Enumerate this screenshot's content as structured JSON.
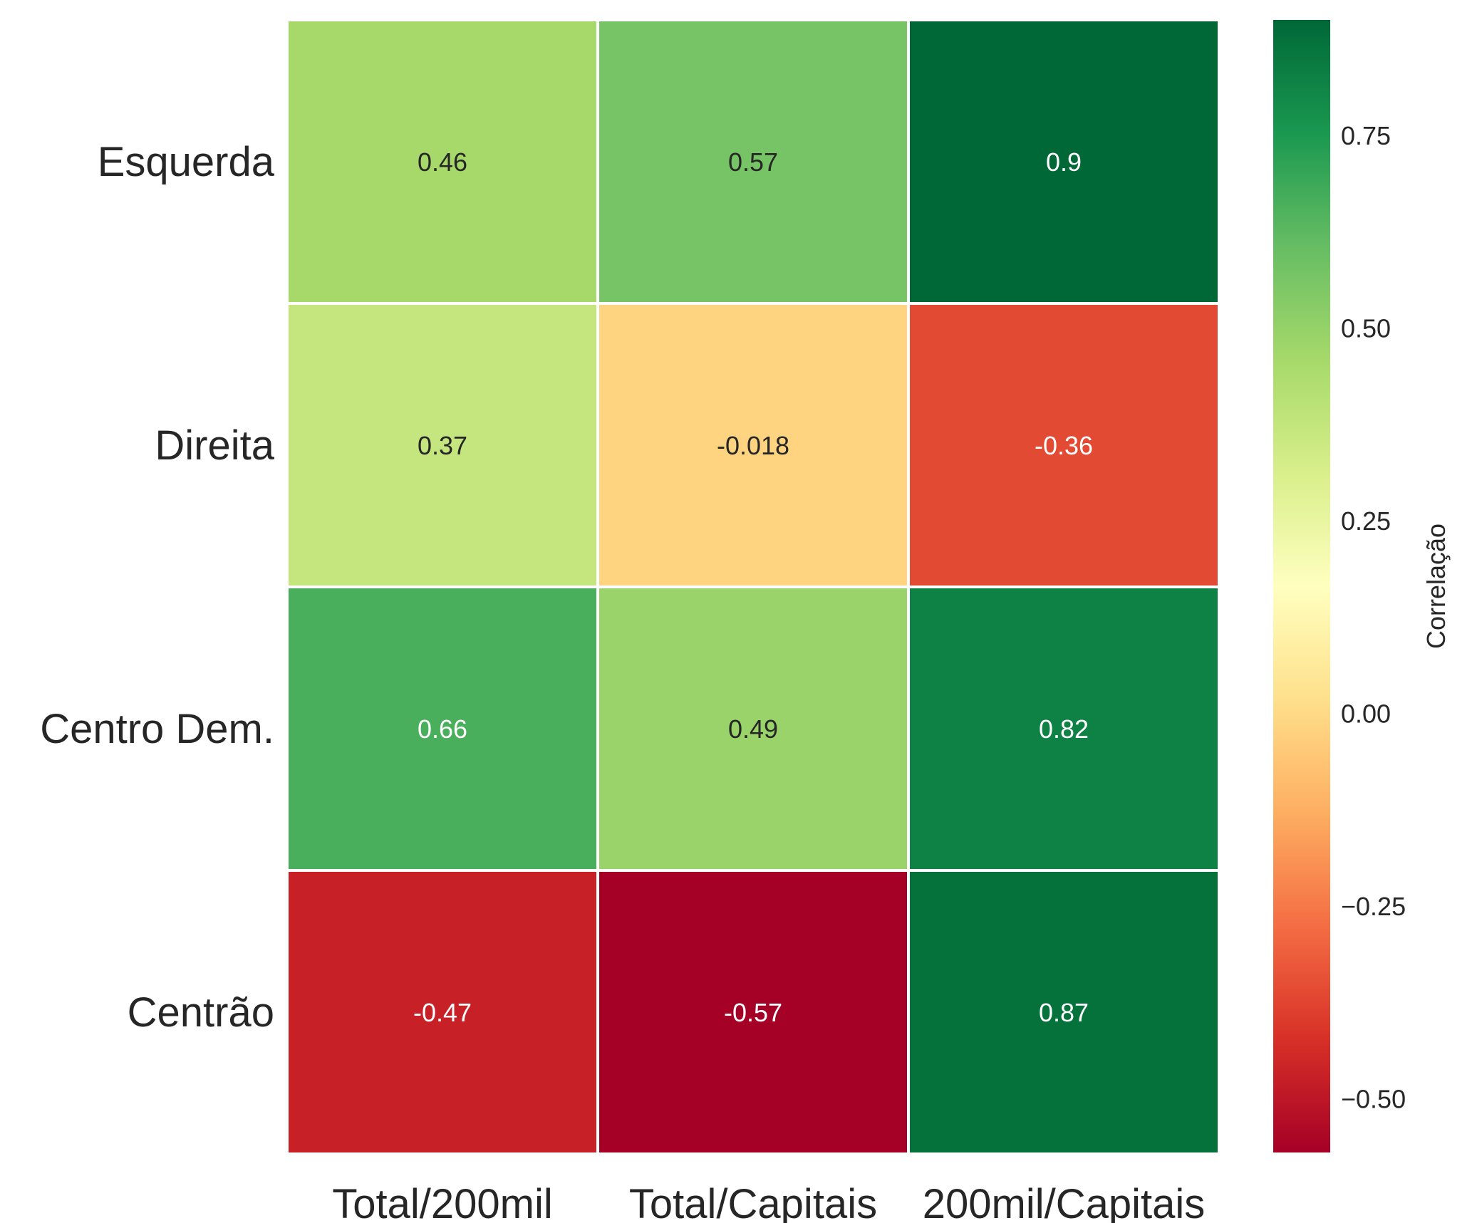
{
  "chart_data": {
    "type": "heatmap",
    "title": "",
    "xlabel": "",
    "ylabel": "",
    "columns": [
      "Total/200mil",
      "Total/Capitais",
      "200mil/Capitais"
    ],
    "rows": [
      "Esquerda",
      "Direita",
      "Centro Dem.",
      "Centrão"
    ],
    "values": [
      [
        0.46,
        0.57,
        0.9
      ],
      [
        0.37,
        -0.018,
        -0.36
      ],
      [
        0.66,
        0.49,
        0.82
      ],
      [
        -0.47,
        -0.57,
        0.87
      ]
    ],
    "annotations": [
      [
        "0.46",
        "0.57",
        "0.9"
      ],
      [
        "0.37",
        "-0.018",
        "-0.36"
      ],
      [
        "0.66",
        "0.49",
        "0.82"
      ],
      [
        "-0.47",
        "-0.57",
        "0.87"
      ]
    ],
    "colormap": "RdYlGn",
    "vmin": -0.57,
    "vmax": 0.9,
    "grid": false,
    "colorbar": {
      "label": "Correlação",
      "ticks": [
        -0.5,
        -0.25,
        0.0,
        0.25,
        0.5,
        0.75
      ],
      "tick_labels": [
        "−0.50",
        "−0.25",
        "0.00",
        "0.25",
        "0.50",
        "0.75"
      ],
      "placement": "right"
    },
    "colors": {
      "cell_border": "#ffffff",
      "label_text": "#262626",
      "annot_dark": "#262626",
      "annot_light": "#ffffff"
    }
  }
}
